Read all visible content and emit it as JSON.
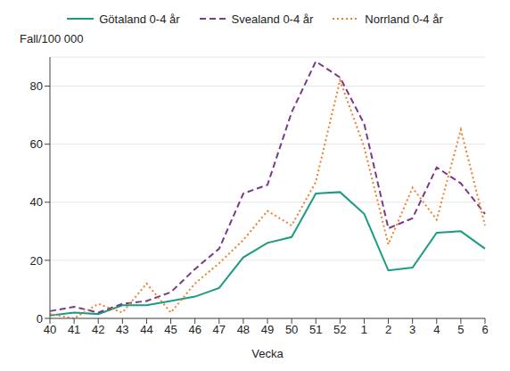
{
  "chart_data": {
    "type": "line",
    "y_label": "Fall/100 000",
    "x_label": "Vecka",
    "categories": [
      "40",
      "41",
      "42",
      "43",
      "44",
      "45",
      "46",
      "47",
      "48",
      "49",
      "50",
      "51",
      "52",
      "1",
      "2",
      "3",
      "4",
      "5",
      "6"
    ],
    "series": [
      {
        "name": "Götaland 0-4 år",
        "color": "#1a9c84",
        "line_style": "solid",
        "values": [
          1,
          2,
          1.5,
          4.5,
          4.5,
          6,
          7.5,
          10.5,
          21,
          26,
          28,
          43,
          43.5,
          36,
          16.5,
          17.5,
          29.5,
          30,
          24
        ]
      },
      {
        "name": "Svealand 0-4 år",
        "color": "#7a3a8a",
        "line_style": "dashed",
        "values": [
          2.5,
          4,
          2,
          5,
          6,
          9,
          17,
          24,
          43,
          46,
          71,
          88.5,
          83,
          67,
          31,
          34.5,
          52,
          46.5,
          36
        ]
      },
      {
        "name": "Norrland 0-4 år",
        "color": "#ef7f2b",
        "line_style": "dotted",
        "values": [
          1.5,
          0,
          5,
          2,
          12,
          2,
          12,
          19,
          27,
          37,
          32,
          47,
          82,
          59,
          25.5,
          45,
          34,
          65,
          32
        ]
      }
    ],
    "ylim": [
      0,
      90
    ],
    "yticks": [
      0,
      20,
      40,
      60,
      80
    ],
    "grid": true,
    "legend": "top"
  }
}
